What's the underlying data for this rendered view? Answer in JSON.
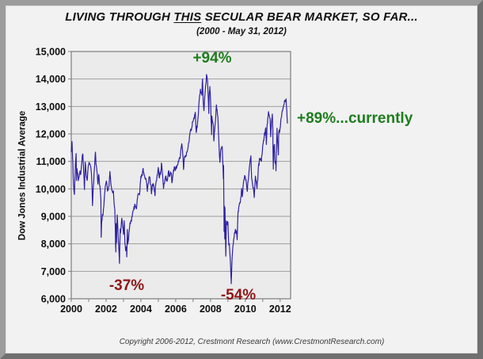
{
  "header": {
    "title_pre": "LIVING THROUGH ",
    "title_emph": "THIS",
    "title_post": " SECULAR BEAR MARKET, SO FAR...",
    "subtitle": "(2000 - May 31, 2012)"
  },
  "footer": {
    "copyright": "Copyright 2006-2012, Crestmont Research (www.CrestmontResearch.com)"
  },
  "colors": {
    "background": "#f2f2f2",
    "plot_background": "#ebebeb",
    "grid": "#9e9e9e",
    "plot_border": "#7d7d7d",
    "line": "#2e22a2",
    "gain_text": "#1e7d1e",
    "loss_text": "#8e1515",
    "tick_text": "#0d0d0d"
  },
  "chart_data": {
    "type": "line",
    "title": "LIVING THROUGH THIS SECULAR BEAR MARKET, SO FAR...",
    "subtitle": "(2000 - May 31, 2012)",
    "xlabel": "",
    "ylabel": "Dow Jones Industrial Average",
    "xlim": [
      2000,
      2012.6
    ],
    "ylim": [
      6000,
      15000
    ],
    "y_ticks": [
      6000,
      7000,
      8000,
      9000,
      10000,
      11000,
      12000,
      13000,
      14000,
      15000
    ],
    "y_tick_labels": [
      "6,000",
      "7,000",
      "8,000",
      "9,000",
      "10,000",
      "11,000",
      "12,000",
      "13,000",
      "14,000",
      "15,000"
    ],
    "x_ticks_labeled": [
      2000,
      2002,
      2004,
      2006,
      2008,
      2010,
      2012
    ],
    "x_ticks_minor_step": 1,
    "grid": "horizontal",
    "legend": "none",
    "annotations": [
      {
        "text": "+94%",
        "x": 2007.9,
        "y": 14600,
        "role": "gain"
      },
      {
        "text": "+89%...currently",
        "x": 2012.6,
        "y": 12500,
        "role": "gain"
      },
      {
        "text": "-37%",
        "x": 2003.2,
        "y": 6500,
        "role": "loss"
      },
      {
        "text": "-54%",
        "x": 2009.3,
        "y": 6100,
        "role": "loss"
      }
    ],
    "series": [
      {
        "name": "Dow Jones Industrial Average (daily)",
        "points": [
          [
            2000.0,
            11358
          ],
          [
            2000.04,
            11723
          ],
          [
            2000.09,
            10940
          ],
          [
            2000.13,
            10128
          ],
          [
            2000.18,
            9796
          ],
          [
            2000.24,
            10922
          ],
          [
            2000.28,
            11287
          ],
          [
            2000.3,
            10306
          ],
          [
            2000.33,
            10734
          ],
          [
            2000.38,
            10522
          ],
          [
            2000.4,
            10299
          ],
          [
            2000.46,
            10448
          ],
          [
            2000.5,
            10646
          ],
          [
            2000.54,
            10522
          ],
          [
            2000.63,
            11215
          ],
          [
            2000.67,
            11260
          ],
          [
            2000.71,
            10651
          ],
          [
            2000.76,
            9975
          ],
          [
            2000.8,
            10971
          ],
          [
            2000.88,
            10414
          ],
          [
            2000.92,
            10318
          ],
          [
            2000.97,
            10788
          ],
          [
            2001.04,
            10946
          ],
          [
            2001.08,
            10887
          ],
          [
            2001.17,
            10495
          ],
          [
            2001.22,
            9389
          ],
          [
            2001.25,
            9879
          ],
          [
            2001.33,
            10735
          ],
          [
            2001.39,
            11337
          ],
          [
            2001.42,
            10912
          ],
          [
            2001.5,
            10502
          ],
          [
            2001.53,
            10175
          ],
          [
            2001.58,
            10523
          ],
          [
            2001.67,
            9950
          ],
          [
            2001.7,
            9606
          ],
          [
            2001.72,
            8236
          ],
          [
            2001.75,
            8848
          ],
          [
            2001.83,
            9075
          ],
          [
            2001.92,
            9852
          ],
          [
            2001.97,
            10137
          ],
          [
            2002.03,
            10259
          ],
          [
            2002.08,
            9920
          ],
          [
            2002.17,
            10106
          ],
          [
            2002.22,
            10635
          ],
          [
            2002.25,
            10404
          ],
          [
            2002.33,
            9946
          ],
          [
            2002.42,
            9925
          ],
          [
            2002.5,
            9243
          ],
          [
            2002.56,
            7702
          ],
          [
            2002.58,
            8737
          ],
          [
            2002.6,
            8043
          ],
          [
            2002.64,
            9053
          ],
          [
            2002.67,
            8664
          ],
          [
            2002.75,
            7592
          ],
          [
            2002.77,
            7286
          ],
          [
            2002.81,
            8538
          ],
          [
            2002.83,
            8397
          ],
          [
            2002.9,
            8931
          ],
          [
            2003.0,
            8342
          ],
          [
            2003.04,
            8842
          ],
          [
            2003.08,
            8054
          ],
          [
            2003.12,
            7749
          ],
          [
            2003.17,
            7891
          ],
          [
            2003.19,
            7524
          ],
          [
            2003.22,
            8522
          ],
          [
            2003.25,
            7992
          ],
          [
            2003.33,
            8480
          ],
          [
            2003.42,
            8850
          ],
          [
            2003.5,
            8985
          ],
          [
            2003.58,
            9234
          ],
          [
            2003.67,
            9416
          ],
          [
            2003.75,
            9275
          ],
          [
            2003.83,
            9801
          ],
          [
            2003.92,
            9782
          ],
          [
            2004.0,
            10454
          ],
          [
            2004.08,
            10488
          ],
          [
            2004.12,
            10738
          ],
          [
            2004.17,
            10584
          ],
          [
            2004.25,
            10358
          ],
          [
            2004.33,
            10226
          ],
          [
            2004.37,
            9906
          ],
          [
            2004.42,
            10188
          ],
          [
            2004.5,
            10435
          ],
          [
            2004.58,
            10140
          ],
          [
            2004.61,
            9815
          ],
          [
            2004.67,
            10174
          ],
          [
            2004.75,
            10080
          ],
          [
            2004.81,
            9749
          ],
          [
            2004.83,
            10027
          ],
          [
            2004.92,
            10428
          ],
          [
            2005.0,
            10783
          ],
          [
            2005.06,
            10393
          ],
          [
            2005.08,
            10490
          ],
          [
            2005.17,
            10766
          ],
          [
            2005.18,
            10941
          ],
          [
            2005.25,
            10504
          ],
          [
            2005.3,
            10012
          ],
          [
            2005.33,
            10193
          ],
          [
            2005.42,
            10467
          ],
          [
            2005.5,
            10275
          ],
          [
            2005.58,
            10641
          ],
          [
            2005.67,
            10482
          ],
          [
            2005.75,
            10569
          ],
          [
            2005.78,
            10217
          ],
          [
            2005.83,
            10440
          ],
          [
            2005.92,
            10806
          ],
          [
            2006.0,
            10718
          ],
          [
            2006.08,
            10865
          ],
          [
            2006.17,
            10993
          ],
          [
            2006.25,
            11109
          ],
          [
            2006.35,
            11643
          ],
          [
            2006.42,
            11168
          ],
          [
            2006.45,
            10706
          ],
          [
            2006.5,
            11150
          ],
          [
            2006.58,
            11186
          ],
          [
            2006.67,
            11381
          ],
          [
            2006.75,
            11679
          ],
          [
            2006.83,
            12080
          ],
          [
            2006.92,
            12222
          ],
          [
            2007.0,
            12463
          ],
          [
            2007.08,
            12622
          ],
          [
            2007.13,
            12787
          ],
          [
            2007.16,
            12216
          ],
          [
            2007.18,
            12050
          ],
          [
            2007.25,
            12354
          ],
          [
            2007.33,
            13063
          ],
          [
            2007.42,
            13628
          ],
          [
            2007.5,
            13409
          ],
          [
            2007.54,
            14000
          ],
          [
            2007.58,
            13212
          ],
          [
            2007.62,
            12846
          ],
          [
            2007.67,
            13358
          ],
          [
            2007.75,
            13896
          ],
          [
            2007.77,
            14164
          ],
          [
            2007.83,
            13930
          ],
          [
            2007.9,
            12743
          ],
          [
            2007.92,
            13371
          ],
          [
            2007.96,
            13727
          ],
          [
            2008.0,
            13265
          ],
          [
            2008.06,
            11971
          ],
          [
            2008.08,
            12650
          ],
          [
            2008.17,
            12266
          ],
          [
            2008.19,
            11740
          ],
          [
            2008.25,
            12263
          ],
          [
            2008.34,
            13058
          ],
          [
            2008.42,
            12638
          ],
          [
            2008.5,
            11350
          ],
          [
            2008.54,
            10963
          ],
          [
            2008.58,
            11378
          ],
          [
            2008.67,
            11544
          ],
          [
            2008.74,
            10365
          ],
          [
            2008.75,
            10851
          ],
          [
            2008.78,
            8451
          ],
          [
            2008.79,
            9388
          ],
          [
            2008.82,
            8176
          ],
          [
            2008.83,
            9325
          ],
          [
            2008.88,
            7552
          ],
          [
            2008.91,
            8829
          ],
          [
            2009.0,
            8776
          ],
          [
            2009.05,
            7949
          ],
          [
            2009.08,
            8001
          ],
          [
            2009.16,
            7063
          ],
          [
            2009.19,
            6547
          ],
          [
            2009.25,
            7609
          ],
          [
            2009.33,
            8168
          ],
          [
            2009.42,
            8500
          ],
          [
            2009.5,
            8447
          ],
          [
            2009.53,
            8146
          ],
          [
            2009.58,
            9172
          ],
          [
            2009.67,
            9496
          ],
          [
            2009.75,
            9712
          ],
          [
            2009.79,
            10015
          ],
          [
            2009.83,
            9713
          ],
          [
            2009.92,
            10345
          ],
          [
            2010.0,
            10428
          ],
          [
            2010.08,
            10067
          ],
          [
            2010.11,
            9908
          ],
          [
            2010.17,
            10325
          ],
          [
            2010.25,
            10857
          ],
          [
            2010.32,
            11205
          ],
          [
            2010.33,
            11009
          ],
          [
            2010.36,
            10380
          ],
          [
            2010.42,
            10137
          ],
          [
            2010.5,
            9774
          ],
          [
            2010.51,
            9686
          ],
          [
            2010.58,
            10466
          ],
          [
            2010.67,
            10015
          ],
          [
            2010.75,
            10788
          ],
          [
            2010.83,
            11118
          ],
          [
            2010.92,
            11006
          ],
          [
            2011.0,
            11578
          ],
          [
            2011.08,
            11892
          ],
          [
            2011.17,
            12226
          ],
          [
            2011.21,
            11613
          ],
          [
            2011.25,
            12320
          ],
          [
            2011.33,
            12811
          ],
          [
            2011.42,
            12570
          ],
          [
            2011.46,
            11897
          ],
          [
            2011.5,
            12414
          ],
          [
            2011.55,
            12724
          ],
          [
            2011.58,
            12143
          ],
          [
            2011.59,
            11384
          ],
          [
            2011.61,
            10720
          ],
          [
            2011.63,
            11482
          ],
          [
            2011.67,
            11614
          ],
          [
            2011.7,
            10992
          ],
          [
            2011.75,
            10913
          ],
          [
            2011.76,
            10655
          ],
          [
            2011.82,
            12209
          ],
          [
            2011.83,
            11955
          ],
          [
            2011.9,
            11232
          ],
          [
            2011.92,
            12046
          ],
          [
            2012.0,
            12218
          ],
          [
            2012.08,
            12633
          ],
          [
            2012.17,
            12952
          ],
          [
            2012.25,
            13212
          ],
          [
            2012.34,
            13279
          ],
          [
            2012.42,
            12393
          ]
        ]
      }
    ]
  }
}
